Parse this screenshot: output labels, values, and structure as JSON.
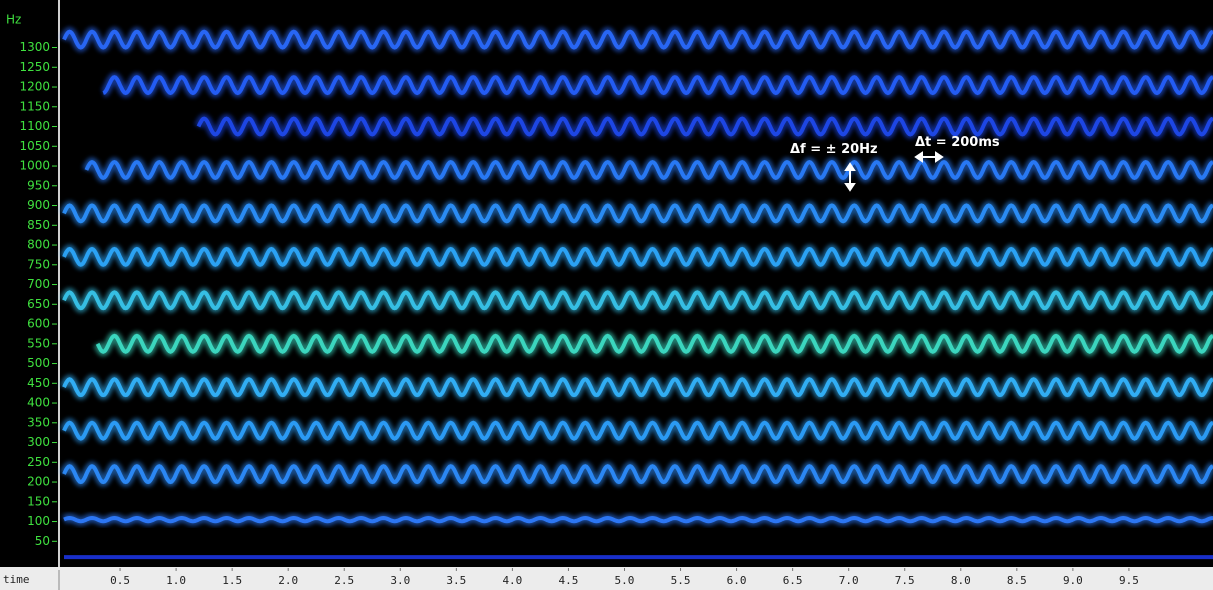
{
  "chart_data": {
    "type": "spectrogram",
    "y_label": "Hz",
    "x_label": "time",
    "xlim": [
      0,
      10.25
    ],
    "ylim": [
      -10,
      1395
    ],
    "yticks": [
      50,
      100,
      150,
      200,
      250,
      300,
      350,
      400,
      450,
      500,
      550,
      600,
      650,
      700,
      750,
      800,
      850,
      900,
      950,
      1000,
      1050,
      1100,
      1150,
      1200,
      1250,
      1300
    ],
    "xticks": [
      0.5,
      {
        "value": 1,
        "label": "1.0"
      },
      1.5,
      {
        "value": 2,
        "label": "2.0"
      },
      2.5,
      {
        "value": 3,
        "label": "3.0"
      },
      3.5,
      {
        "value": 4,
        "label": "4.0"
      },
      4.5,
      {
        "value": 5,
        "label": "5.0"
      },
      5.5,
      {
        "value": 6,
        "label": "6.0"
      },
      6.5,
      {
        "value": 7,
        "label": "7.0"
      },
      7.5,
      {
        "value": 8,
        "label": "8.0"
      },
      8.5,
      {
        "value": 9,
        "label": "9.0"
      },
      9.5
    ],
    "vibrato_period": 0.2,
    "bands": [
      {
        "frequency": 10,
        "start": 0,
        "depth": 0,
        "color": "#1c34e0"
      },
      {
        "frequency": 105,
        "start": 0,
        "depth": 4,
        "color": "#2f7cff"
      },
      {
        "frequency": 220,
        "start": 0,
        "depth": 20,
        "color": "#2e8eff"
      },
      {
        "frequency": 330,
        "start": 0,
        "depth": 20,
        "color": "#2ea2ff"
      },
      {
        "frequency": 440,
        "start": 0,
        "depth": 20,
        "color": "#34b6ff"
      },
      {
        "frequency": 550,
        "start": 0.3,
        "depth": 20,
        "color": "#3ee0c8"
      },
      {
        "frequency": 660,
        "start": 0,
        "depth": 20,
        "color": "#38c8ee"
      },
      {
        "frequency": 770,
        "start": 0,
        "depth": 20,
        "color": "#2eaaff"
      },
      {
        "frequency": 880,
        "start": 0,
        "depth": 20,
        "color": "#2c92ff"
      },
      {
        "frequency": 990,
        "start": 0.2,
        "depth": 20,
        "color": "#2a7eff"
      },
      {
        "frequency": 1100,
        "start": 1.2,
        "depth": 20,
        "color": "#1f4aef"
      },
      {
        "frequency": 1205,
        "start": 0.35,
        "depth": 20,
        "color": "#2560ff"
      },
      {
        "frequency": 1320,
        "start": 0,
        "depth": 20,
        "color": "#2a6cff"
      }
    ],
    "annotations": [
      "Δf = ± 20Hz",
      "Δt = 200ms"
    ]
  }
}
